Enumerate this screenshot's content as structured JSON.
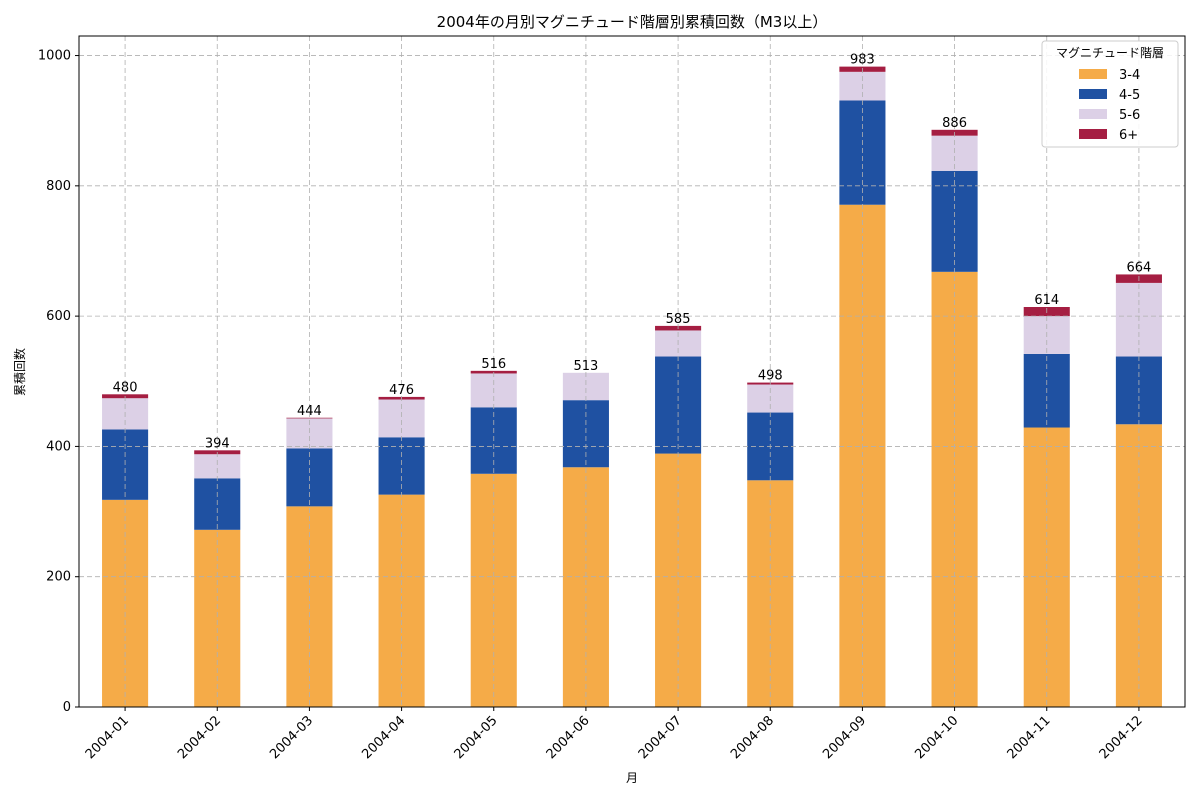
{
  "chart_data": {
    "type": "bar",
    "stacked": true,
    "title": "2004年の月別マグニチュード階層別累積回数（M3以上）",
    "xlabel": "月",
    "ylabel": "累積回数",
    "ylim": [
      0,
      1030
    ],
    "yticks": [
      0,
      200,
      400,
      600,
      800,
      1000
    ],
    "grid": true,
    "legend": {
      "title": "マグニチュード階層",
      "placement": "top-right"
    },
    "categories": [
      "2004-01",
      "2004-02",
      "2004-03",
      "2004-04",
      "2004-05",
      "2004-06",
      "2004-07",
      "2004-08",
      "2004-09",
      "2004-10",
      "2004-11",
      "2004-12"
    ],
    "series": [
      {
        "name": "3-4",
        "color": "#f5ab48",
        "values": [
          318,
          272,
          308,
          326,
          358,
          368,
          389,
          348,
          771,
          668,
          429,
          434
        ]
      },
      {
        "name": "4-5",
        "color": "#1f51a2",
        "values": [
          108,
          79,
          89,
          88,
          102,
          103,
          149,
          104,
          160,
          155,
          113,
          104
        ]
      },
      {
        "name": "5-6",
        "color": "#dcd0e6",
        "values": [
          48,
          37,
          46,
          58,
          52,
          42,
          40,
          43,
          44,
          54,
          58,
          113
        ]
      },
      {
        "name": "6+",
        "color": "#a51e42",
        "values": [
          6,
          6,
          1,
          4,
          4,
          0,
          7,
          3,
          8,
          9,
          14,
          13
        ]
      }
    ],
    "totals": [
      480,
      394,
      444,
      476,
      516,
      513,
      585,
      498,
      983,
      886,
      614,
      664
    ]
  }
}
